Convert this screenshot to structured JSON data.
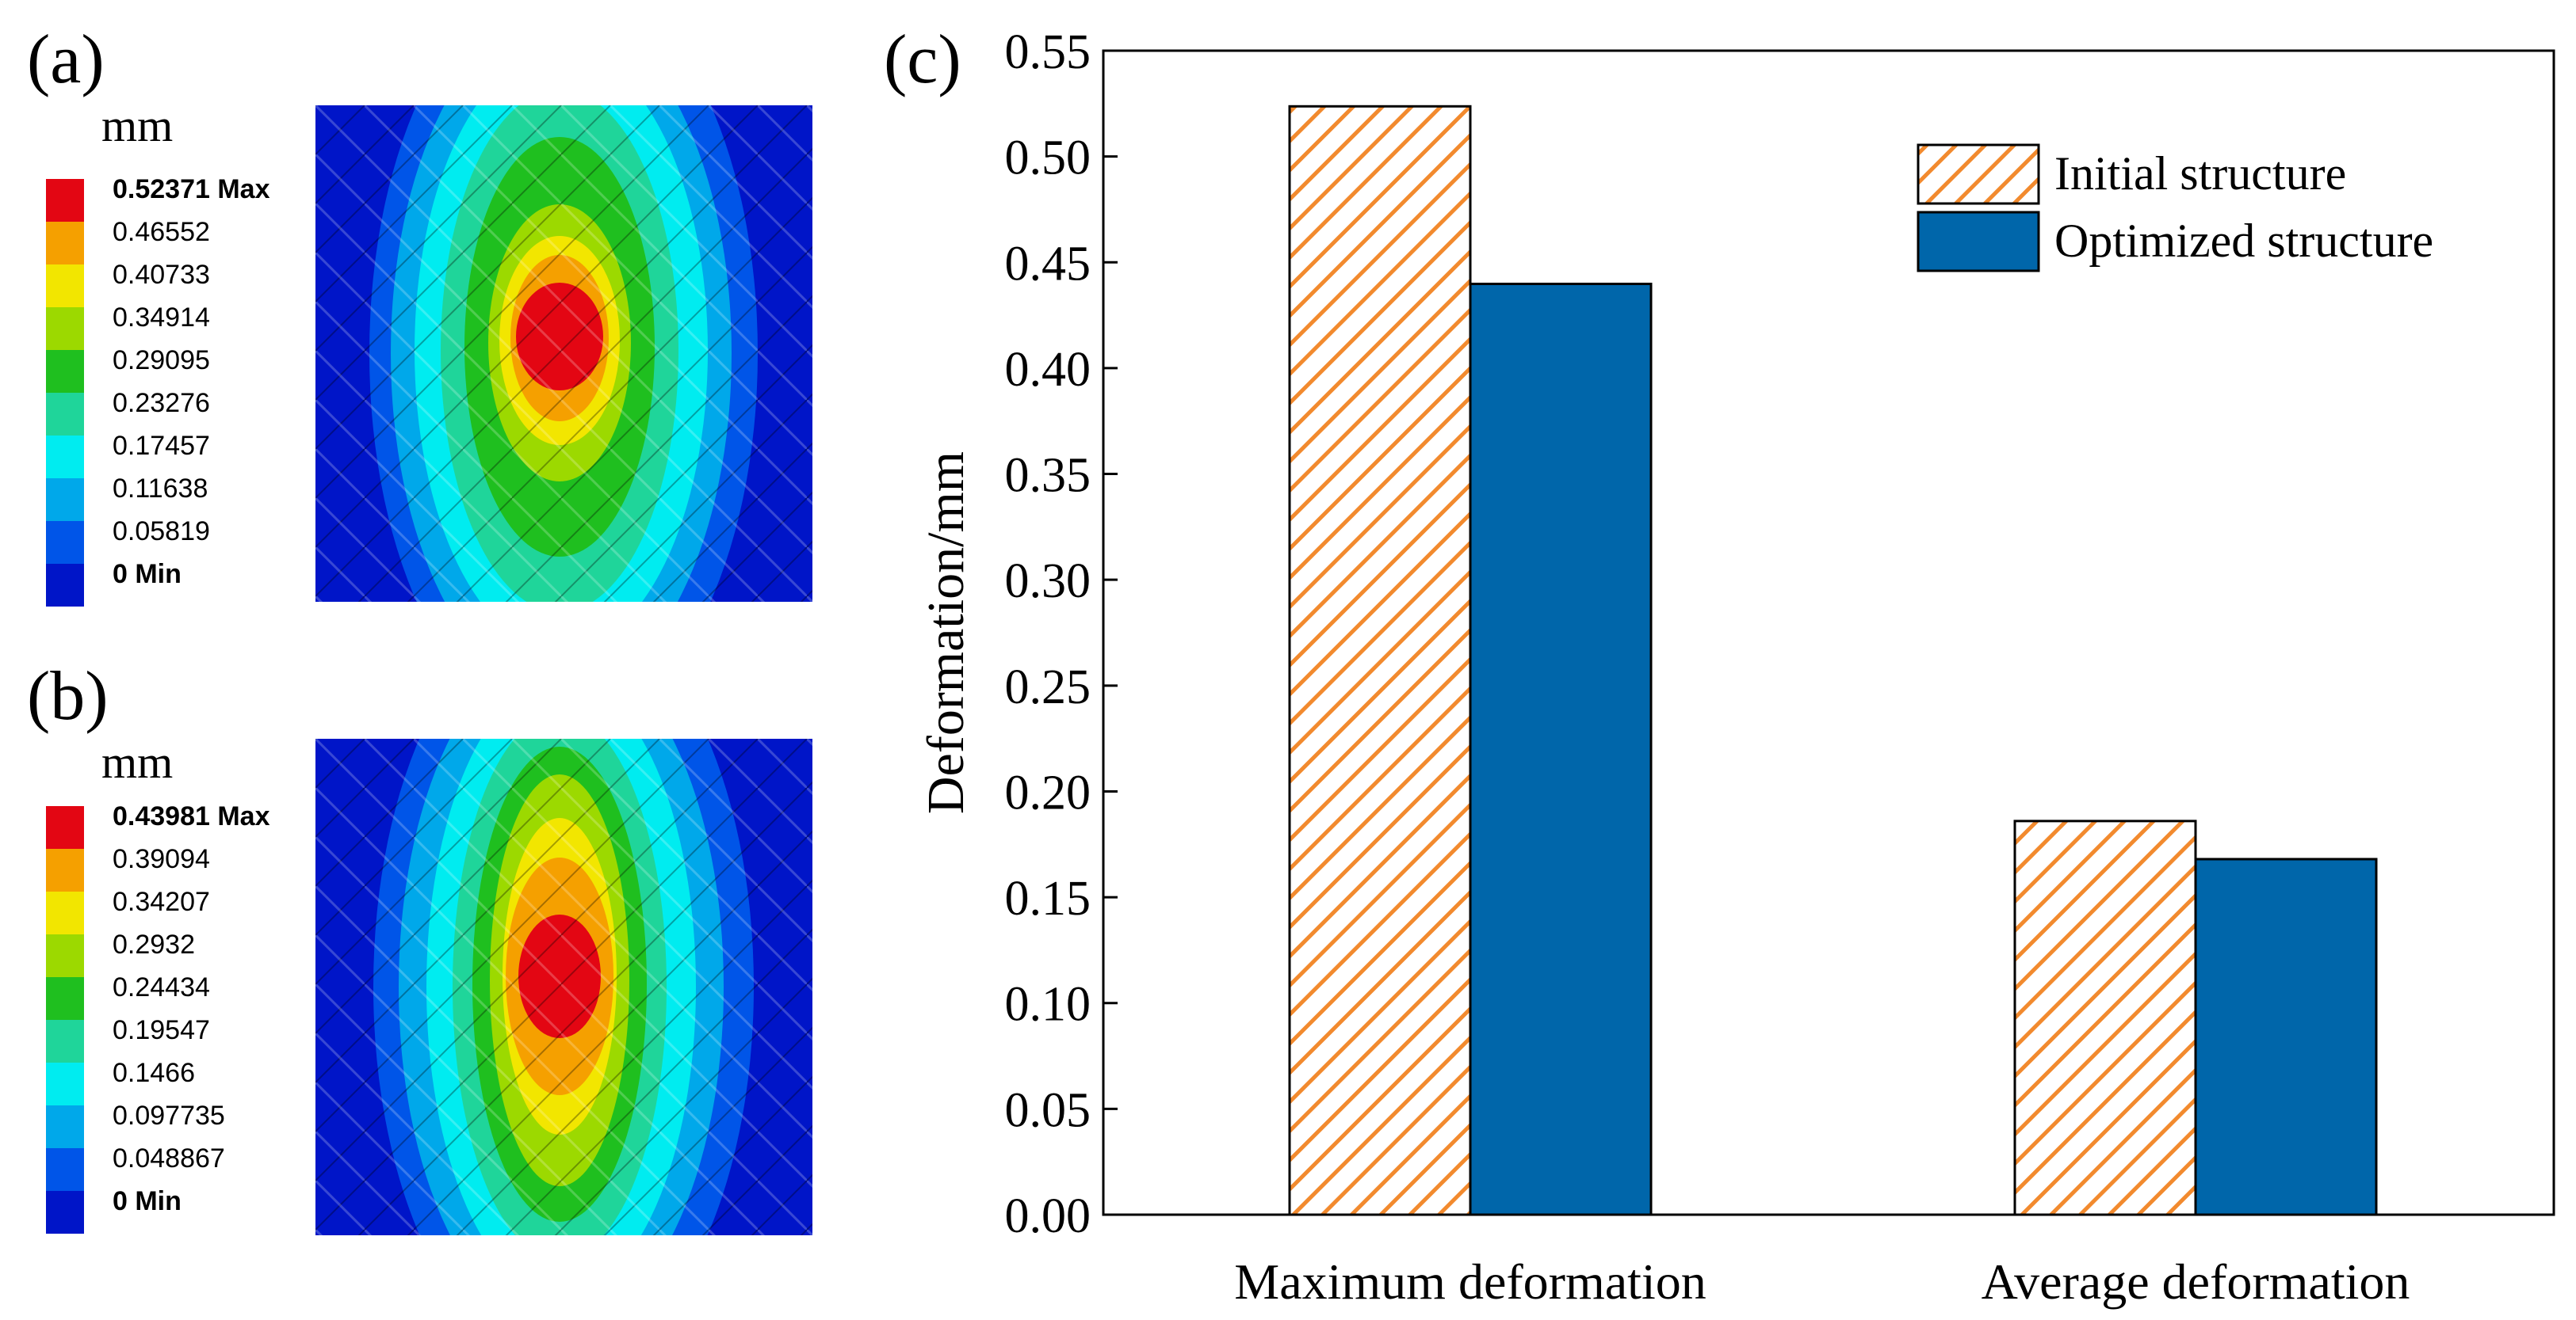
{
  "panels": {
    "a": {
      "label": "(a)",
      "unit": "mm",
      "legend": [
        "0.52371 Max",
        "0.46552",
        "0.40733",
        "0.34914",
        "0.29095",
        "0.23276",
        "0.17457",
        "0.11638",
        "0.05819",
        "0 Min"
      ]
    },
    "b": {
      "label": "(b)",
      "unit": "mm",
      "legend": [
        "0.43981 Max",
        "0.39094",
        "0.34207",
        "0.2932",
        "0.24434",
        "0.19547",
        "0.1466",
        "0.097735",
        "0.048867",
        "0 Min"
      ]
    },
    "c": {
      "label": "(c)"
    }
  },
  "colors": {
    "scale": [
      "#e30613",
      "#f5a000",
      "#f2e600",
      "#9cd900",
      "#1fbf1f",
      "#1fd59a",
      "#00ecf0",
      "#00a8ea",
      "#0055e8",
      "#0015c8"
    ],
    "bar_hatch": "#f28a2e",
    "bar_solid": "#0066aa"
  },
  "chart_data": {
    "type": "bar",
    "title": "",
    "xlabel": "",
    "ylabel": "Deformation/mm",
    "categories": [
      "Maximum deformation",
      "Average deformation"
    ],
    "series": [
      {
        "name": "Initial structure",
        "values": [
          0.5237,
          0.186
        ],
        "style": "hatched"
      },
      {
        "name": "Optimized structure",
        "values": [
          0.4398,
          0.168
        ],
        "style": "solid"
      }
    ],
    "ylim": [
      0,
      0.55
    ],
    "yticks": [
      "0.00",
      "0.05",
      "0.10",
      "0.15",
      "0.20",
      "0.25",
      "0.30",
      "0.35",
      "0.40",
      "0.45",
      "0.50",
      "0.55"
    ],
    "legend_position": "top-right",
    "grid": false
  }
}
